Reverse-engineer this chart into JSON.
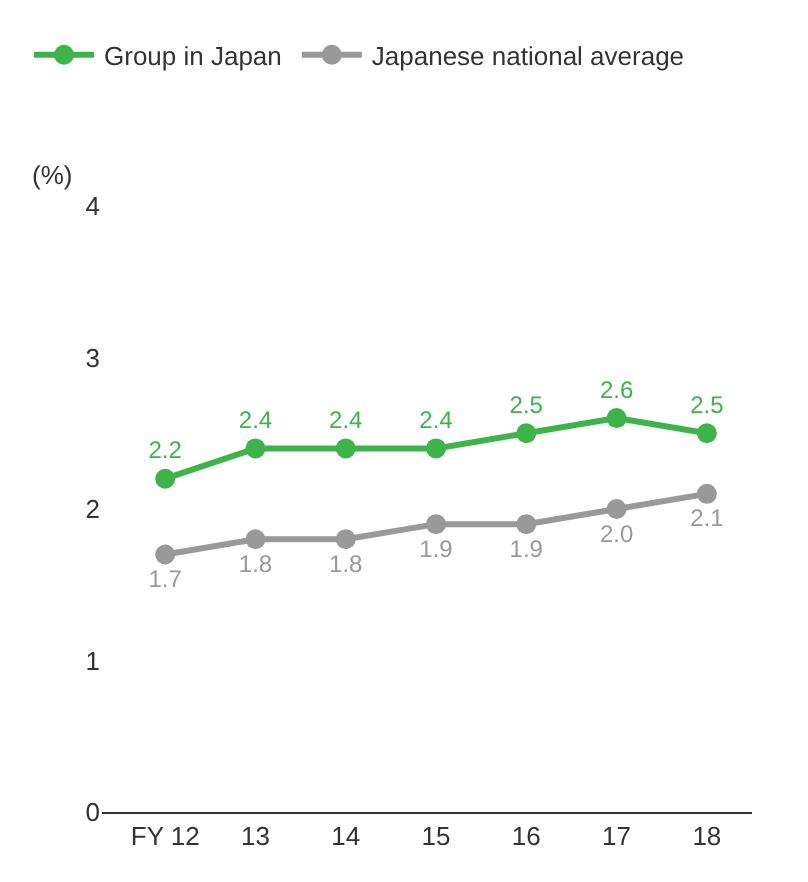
{
  "chart_data": {
    "type": "line",
    "ylabel": "(%)",
    "categories": [
      "FY 12",
      "13",
      "14",
      "15",
      "16",
      "17",
      "18"
    ],
    "series": [
      {
        "name": "Group in Japan",
        "color": "#3cb44a",
        "values": [
          2.2,
          2.4,
          2.4,
          2.4,
          2.5,
          2.6,
          2.5
        ],
        "value_labels": [
          "2.2",
          "2.4",
          "2.4",
          "2.4",
          "2.5",
          "2.6",
          "2.5"
        ]
      },
      {
        "name": "Japanese national average",
        "color": "#999999",
        "values": [
          1.7,
          1.8,
          1.8,
          1.9,
          1.9,
          2.0,
          2.1
        ],
        "value_labels": [
          "1.7",
          "1.8",
          "1.8",
          "1.9",
          "1.9",
          "2.0",
          "2.1"
        ]
      }
    ],
    "ylim": [
      0,
      4
    ],
    "yticks": [
      0,
      1,
      2,
      3,
      4
    ],
    "legend": "top left",
    "marker": "circle",
    "line_style": "solid"
  }
}
